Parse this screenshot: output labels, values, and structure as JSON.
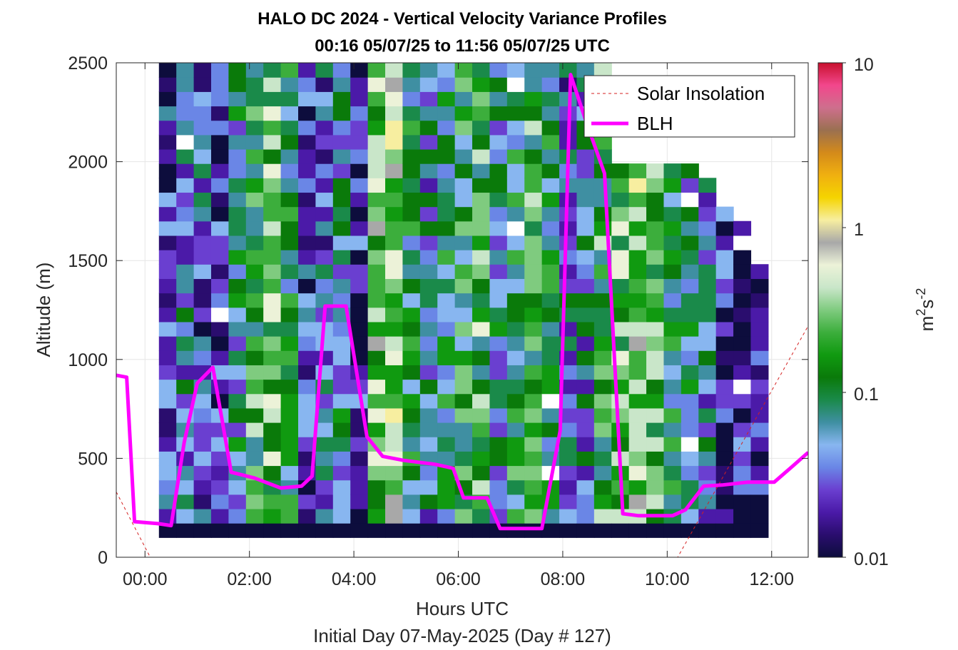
{
  "chart_data": {
    "type": "heatmap",
    "title": "HALO DC 2024 - Vertical Velocity Variance Profiles",
    "subtitle": "00:16 05/07/25 to 11:56 05/07/25  UTC",
    "xlabel": "Hours UTC",
    "xlabel2": "Initial Day 07-May-2025 (Day # 127)",
    "ylabel": "Altitude (m)",
    "xlim": [
      -0.55,
      12.7
    ],
    "ylim": [
      0,
      2500
    ],
    "grid": true,
    "x_ticks": [
      0,
      2,
      4,
      6,
      8,
      10,
      12
    ],
    "x_tick_labels": [
      "00:00",
      "02:00",
      "04:00",
      "06:00",
      "08:00",
      "10:00",
      "12:00"
    ],
    "y_ticks": [
      0,
      500,
      1000,
      1500,
      2000,
      2500
    ],
    "y_tick_labels": [
      "0",
      "500",
      "1000",
      "1500",
      "2000",
      "2500"
    ],
    "colorbar": {
      "label_base": "m",
      "label_sup1": "2",
      "label_mid": "s",
      "label_sup2": "-2",
      "scale": "log",
      "range": [
        0.01,
        10
      ],
      "ticks": [
        0.01,
        0.1,
        1,
        10
      ],
      "tick_labels": [
        "0.01",
        "0.1",
        "1",
        "10"
      ],
      "colormap": [
        "#0d0d3d",
        "#2a0d6e",
        "#4b1aa8",
        "#6a3fd0",
        "#6a86e6",
        "#88b6f0",
        "#3f8fa2",
        "#1a8a4a",
        "#0a7a0a",
        "#109a10",
        "#3cae3c",
        "#7fcb7f",
        "#c9e6c9",
        "#ecf2d8",
        "#a8a8a8",
        "#f7eea0",
        "#f5d400",
        "#f0b010",
        "#d48a1a",
        "#9a7050",
        "#ce6f8d",
        "#f2478c",
        "#c8102e"
      ]
    },
    "heatmap": {
      "time_start_hours": 0.2667,
      "time_end_hours": 11.9333,
      "altitude_start_m": 100,
      "altitude_end_m": 2500,
      "n_time_columns": 35,
      "n_altitude_gates": 33,
      "column_top_altitude_m": [
        2500,
        2500,
        2500,
        2500,
        2500,
        2500,
        2500,
        2500,
        2500,
        2500,
        2500,
        2500,
        2500,
        2500,
        2500,
        2500,
        2500,
        2500,
        2500,
        2500,
        2500,
        2500,
        2500,
        2500,
        2500,
        2500,
        2050,
        2050,
        2050,
        2050,
        2050,
        1950,
        1800,
        1700,
        1500
      ],
      "note_values": "log10 variance per column (coarse profile summary)",
      "column_mean_log10": [
        -1.6,
        -1.3,
        -1.5,
        -1.7,
        -1.2,
        -0.8,
        -0.6,
        -1.0,
        -1.6,
        -1.5,
        -1.2,
        -1.7,
        -0.5,
        -0.4,
        -1.0,
        -1.3,
        -1.1,
        -0.9,
        -0.7,
        -1.2,
        -1.0,
        -0.8,
        -1.0,
        -1.4,
        -1.3,
        -0.8,
        -0.6,
        -0.4,
        -0.7,
        -1.0,
        -1.2,
        -1.3,
        -1.6,
        -1.8,
        -1.9
      ]
    },
    "series": [
      {
        "name": "Solar Insolation",
        "style": "dashed",
        "color": "#d42020",
        "x": [
          -0.55,
          0.1,
          10.2,
          12.7
        ],
        "y": [
          330,
          0,
          0,
          1170
        ]
      },
      {
        "name": "BLH",
        "style": "solid",
        "color": "#ff00ff",
        "x": [
          -0.55,
          -0.35,
          -0.2,
          0.25,
          0.5,
          0.75,
          1.0,
          1.3,
          1.65,
          2.1,
          2.6,
          3.0,
          3.2,
          3.45,
          3.85,
          4.25,
          4.55,
          4.95,
          5.55,
          5.9,
          6.1,
          6.55,
          6.8,
          7.3,
          7.6,
          7.95,
          8.15,
          8.45,
          8.8,
          9.15,
          9.45,
          9.75,
          10.1,
          10.35,
          10.7,
          11.05,
          11.55,
          12.05,
          12.4,
          12.7
        ],
        "y": [
          920,
          910,
          180,
          170,
          160,
          580,
          880,
          960,
          430,
          400,
          350,
          360,
          410,
          1270,
          1270,
          610,
          510,
          490,
          470,
          450,
          300,
          300,
          145,
          145,
          145,
          640,
          2440,
          2200,
          1940,
          220,
          210,
          210,
          210,
          240,
          360,
          365,
          380,
          380,
          460,
          530
        ]
      }
    ]
  }
}
